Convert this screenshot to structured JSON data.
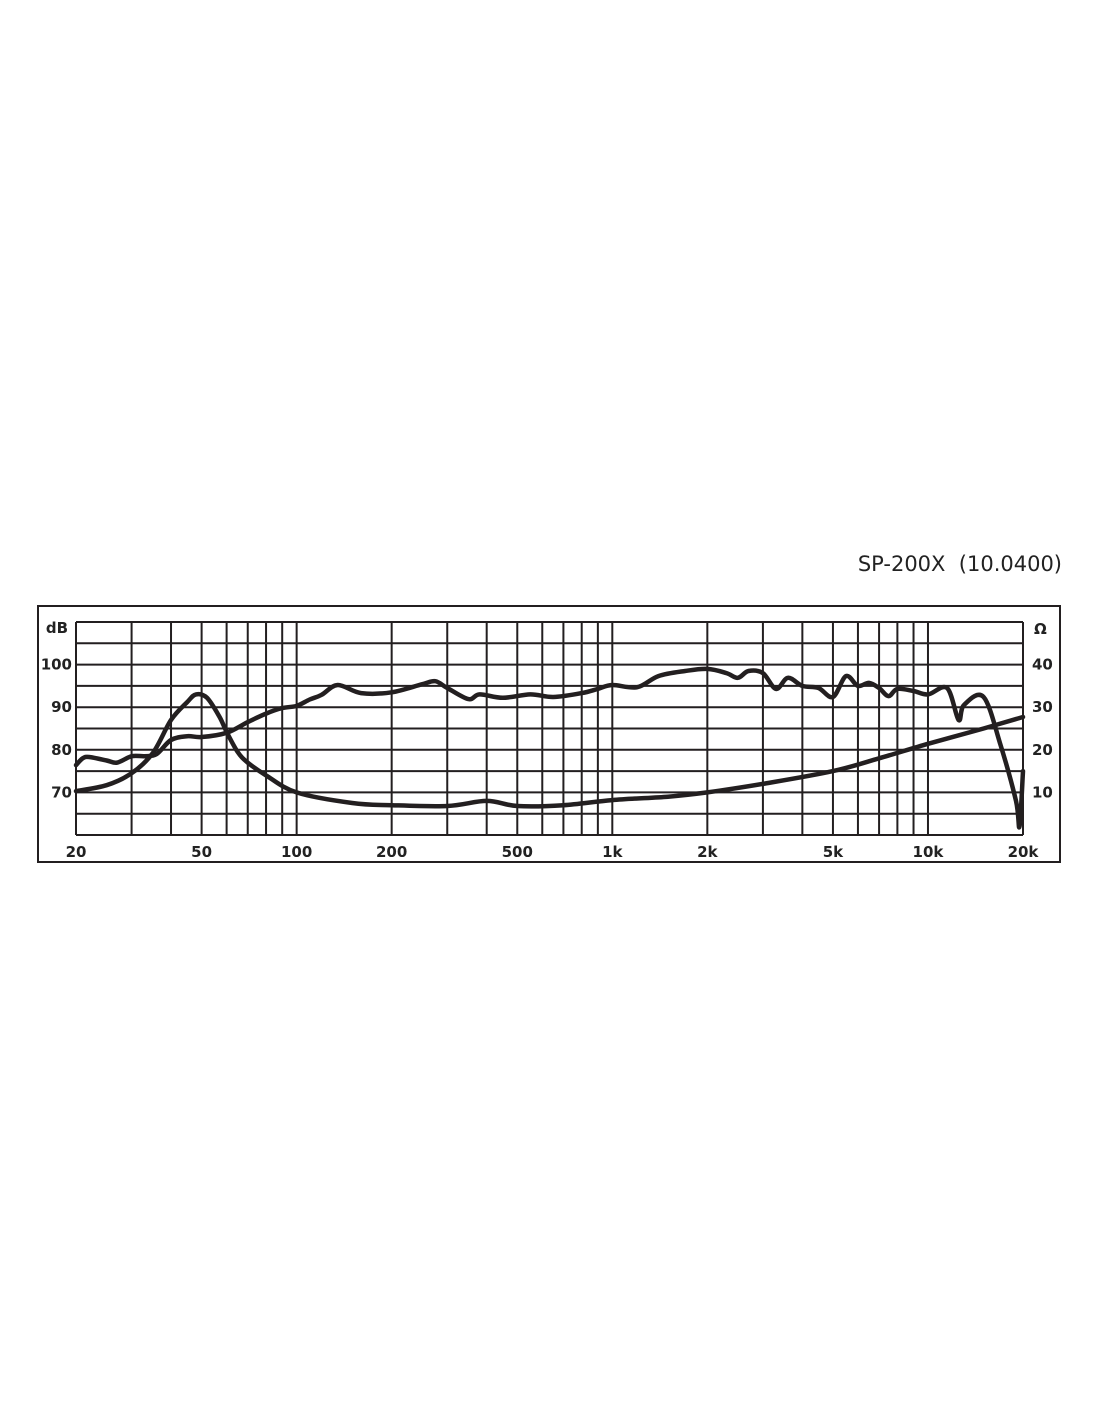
{
  "chart_data": {
    "type": "line",
    "title": "SP-200X  (10.0400)",
    "x_scale": "log",
    "xlim": [
      20,
      20000
    ],
    "x_ticks": [
      {
        "v": 20,
        "label": "20"
      },
      {
        "v": 50,
        "label": "50"
      },
      {
        "v": 100,
        "label": "100"
      },
      {
        "v": 200,
        "label": "200"
      },
      {
        "v": 500,
        "label": "500"
      },
      {
        "v": 1000,
        "label": "1k"
      },
      {
        "v": 2000,
        "label": "2k"
      },
      {
        "v": 5000,
        "label": "5k"
      },
      {
        "v": 10000,
        "label": "10k"
      },
      {
        "v": 20000,
        "label": "20k"
      }
    ],
    "ylabel": "dB",
    "ylim": [
      60,
      110
    ],
    "y_ticks": [
      {
        "v": 100,
        "label": "100"
      },
      {
        "v": 90,
        "label": "90"
      },
      {
        "v": 80,
        "label": "80"
      },
      {
        "v": 70,
        "label": "70"
      }
    ],
    "y2label": "Ω",
    "y2lim": [
      0,
      50
    ],
    "y2_ticks": [
      {
        "v": 40,
        "label": "40"
      },
      {
        "v": 30,
        "label": "30"
      },
      {
        "v": 20,
        "label": "20"
      },
      {
        "v": 10,
        "label": "10"
      }
    ],
    "grid": true,
    "line_color": "#231f20",
    "series": [
      {
        "axis": "left",
        "x": [
          20,
          21,
          22,
          25,
          27,
          30,
          33,
          36,
          40,
          45,
          50,
          60,
          70,
          80,
          90,
          100,
          110,
          120,
          135,
          160,
          200,
          250,
          275,
          300,
          350,
          380,
          450,
          550,
          650,
          800,
          900,
          1000,
          1200,
          1400,
          1700,
          2000,
          2300,
          2500,
          2700,
          3000,
          3300,
          3600,
          4000,
          4500,
          5000,
          5500,
          6000,
          6500,
          7000,
          7500,
          8000,
          9000,
          10000,
          11500,
          12500,
          13000,
          15000,
          17000,
          19000,
          19500,
          20000
        ],
        "y": [
          76.4,
          78,
          78.3,
          77.5,
          77,
          78.5,
          78.5,
          79,
          82.3,
          83.2,
          83,
          84,
          86.5,
          88.5,
          89.8,
          90.3,
          91.8,
          92.9,
          95.2,
          93.3,
          93.5,
          95.4,
          96.1,
          94.5,
          91.9,
          93,
          92.2,
          93,
          92.4,
          93.3,
          94.3,
          95.2,
          94.7,
          97.3,
          98.5,
          99,
          98,
          96.9,
          98.5,
          98,
          94.3,
          96.9,
          95,
          94.5,
          92.4,
          97.3,
          95,
          95.7,
          94.5,
          92.6,
          94.3,
          93.8,
          93,
          94.5,
          87,
          90.5,
          92.4,
          81,
          68,
          62,
          75
        ]
      },
      {
        "axis": "right",
        "x": [
          20,
          25,
          30,
          35,
          40,
          45,
          48,
          52,
          57,
          60,
          65,
          70,
          80,
          100,
          150,
          200,
          300,
          400,
          500,
          700,
          1000,
          1500,
          2000,
          3000,
          5000,
          7000,
          10000,
          15000,
          20000
        ],
        "y": [
          10.3,
          11.7,
          14.5,
          19.2,
          27,
          31.2,
          33,
          32.2,
          27.7,
          24.2,
          19.5,
          17,
          14,
          10,
          7.5,
          7,
          6.8,
          8,
          6.8,
          7,
          8.2,
          9,
          10,
          12,
          15,
          18,
          21.4,
          25,
          27.7
        ]
      }
    ]
  }
}
